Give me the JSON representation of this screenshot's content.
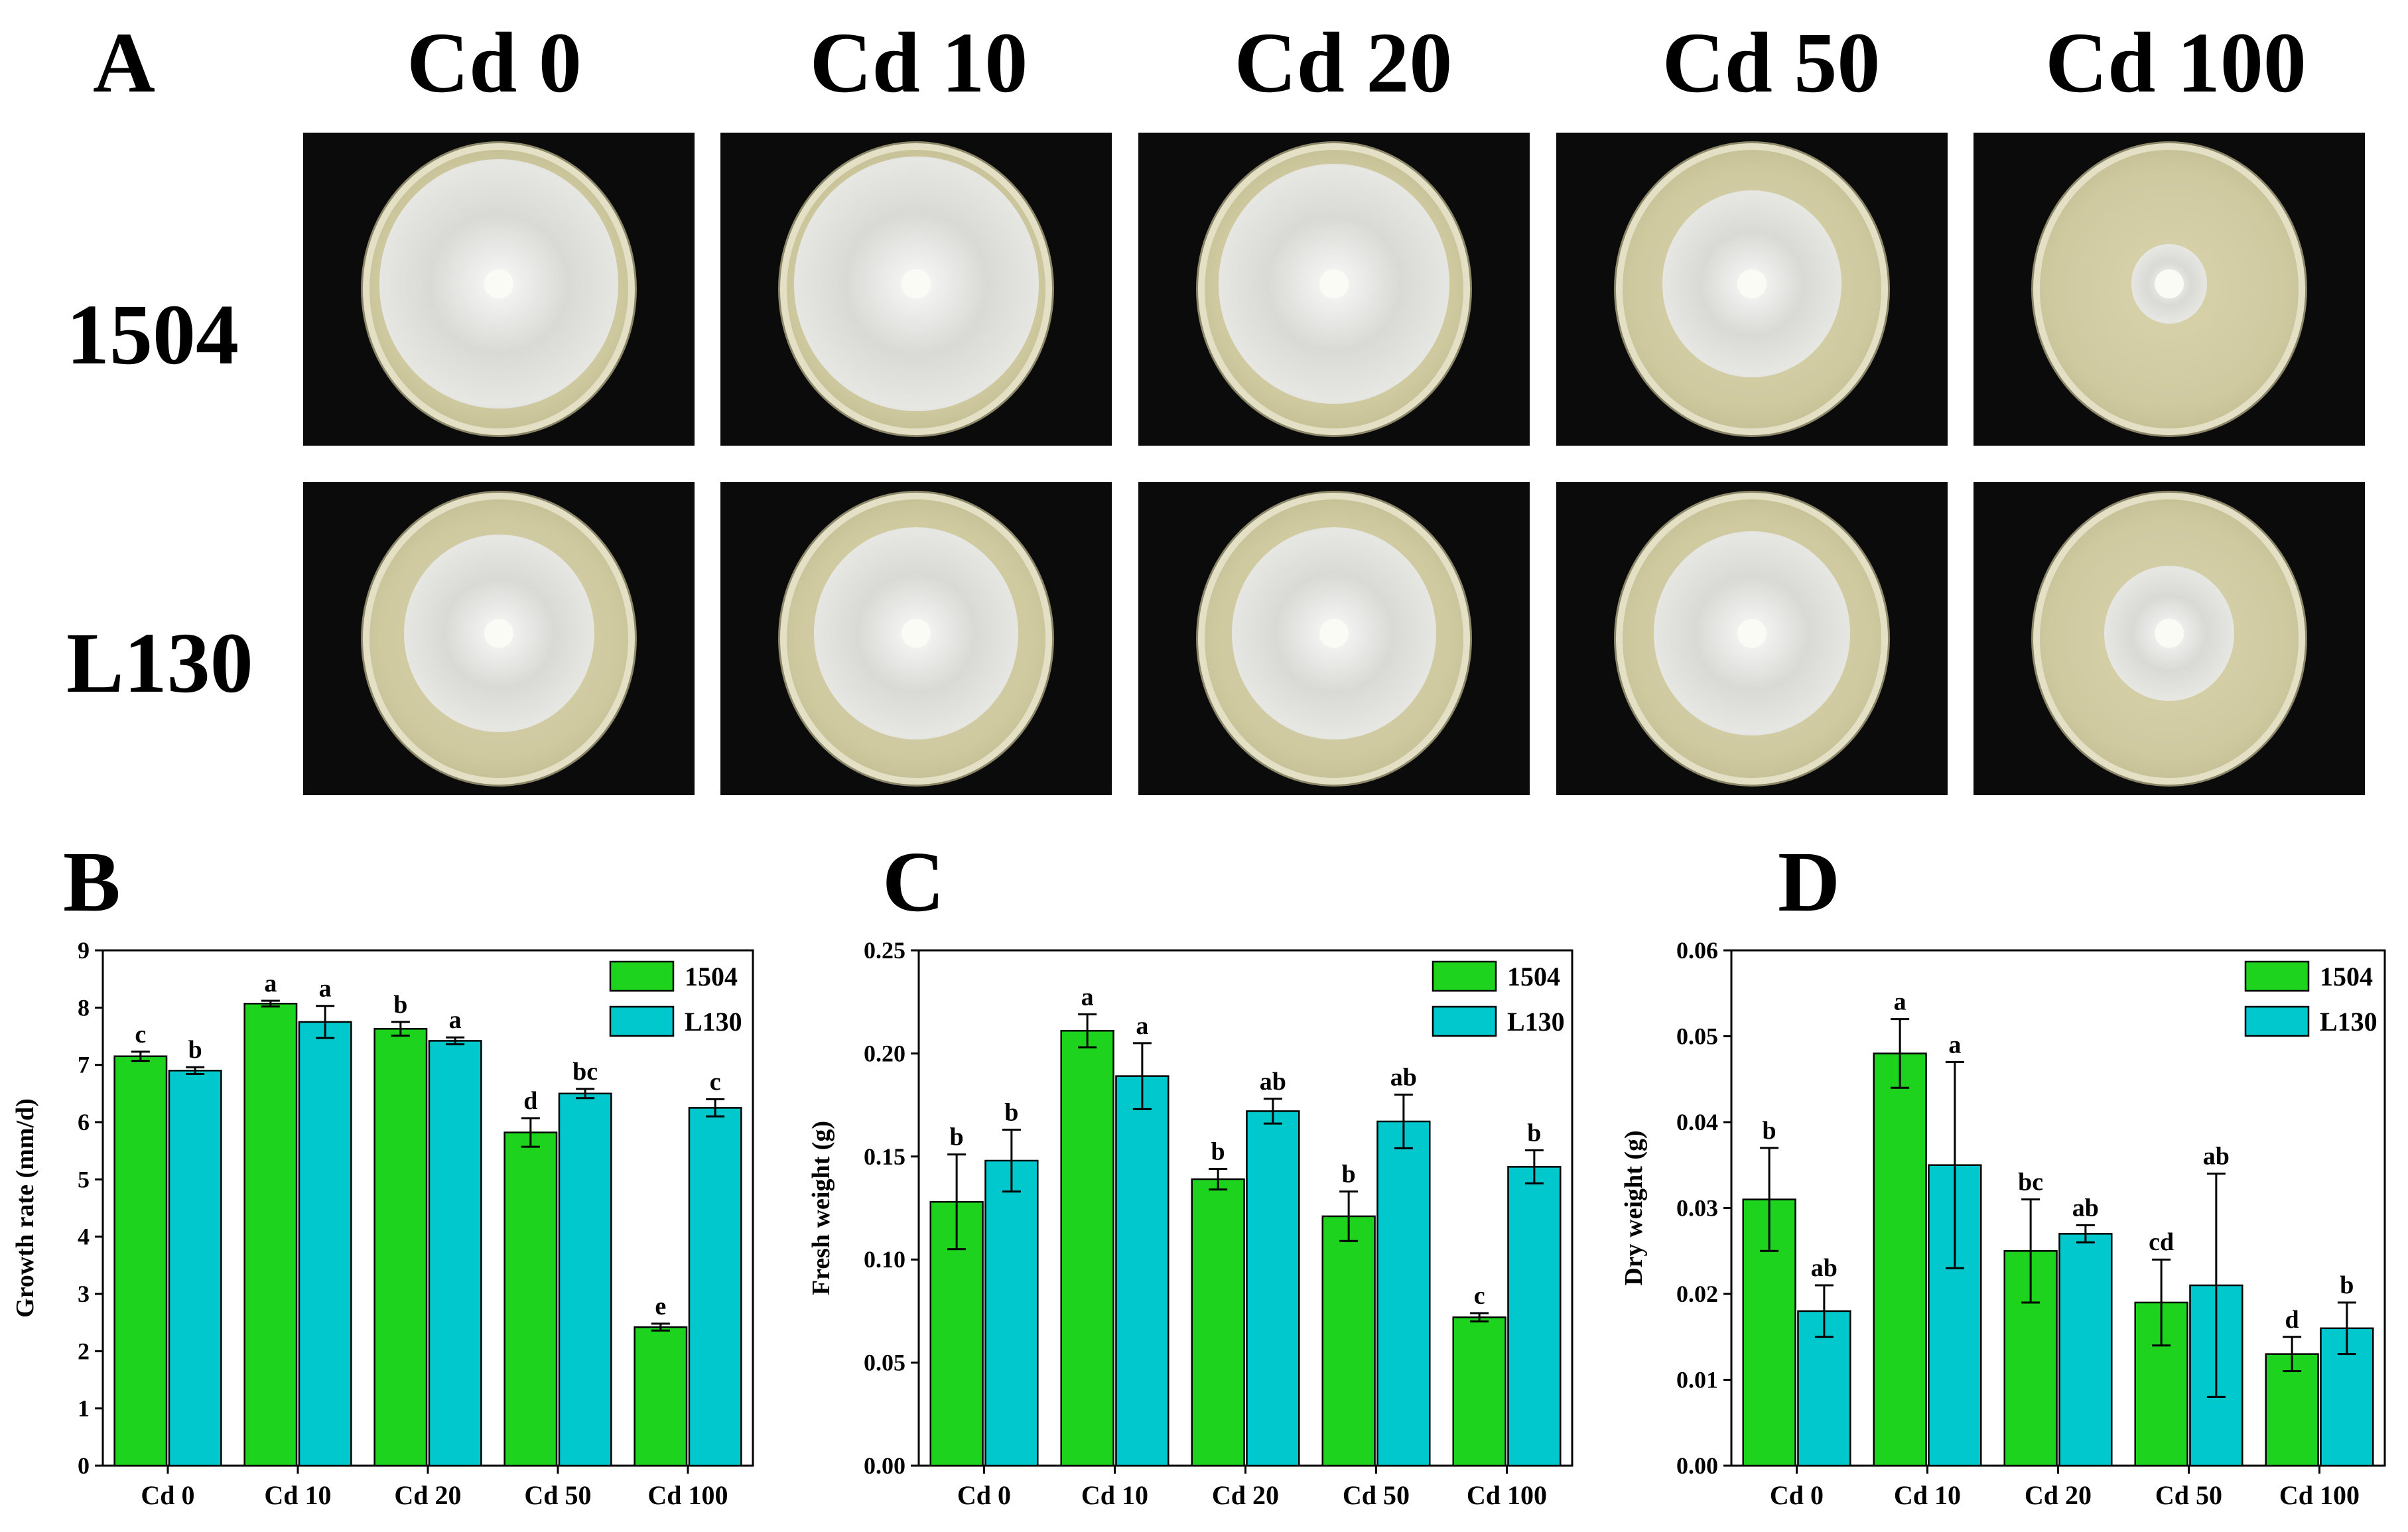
{
  "panel_letters": {
    "A": "A",
    "B": "B",
    "C": "C",
    "D": "D"
  },
  "photo_grid": {
    "columns": [
      "Cd 0",
      "Cd 10",
      "Cd 20",
      "Cd 50",
      "Cd 100"
    ],
    "rows": [
      "1504",
      "L130"
    ],
    "colony_relative_size": [
      [
        0.88,
        0.9,
        0.85,
        0.66,
        0.28
      ],
      [
        0.7,
        0.75,
        0.75,
        0.72,
        0.48
      ]
    ]
  },
  "colors": {
    "series_1504": "#1ed31e",
    "series_L130": "#00c8cc",
    "error_bar": "#000000"
  },
  "chart_data": [
    {
      "type": "bar",
      "panel": "B",
      "categories": [
        "Cd 0",
        "Cd 10",
        "Cd 20",
        "Cd 50",
        "Cd 100"
      ],
      "series": [
        {
          "name": "1504",
          "values": [
            7.15,
            8.07,
            7.63,
            5.82,
            2.42
          ],
          "errors": [
            0.08,
            0.05,
            0.12,
            0.25,
            0.06
          ],
          "letters": [
            "c",
            "a",
            "b",
            "d",
            "e"
          ]
        },
        {
          "name": "L130",
          "values": [
            6.9,
            7.75,
            7.42,
            6.5,
            6.25
          ],
          "errors": [
            0.06,
            0.28,
            0.06,
            0.08,
            0.15
          ],
          "letters": [
            "b",
            "a",
            "a",
            "bc",
            "c"
          ]
        }
      ],
      "ylabel": "Growth rate (mm/d)",
      "ylim": [
        0,
        9
      ],
      "yticks": [
        "0",
        "1",
        "2",
        "3",
        "4",
        "5",
        "6",
        "7",
        "8",
        "9"
      ],
      "legend": [
        "1504",
        "L130"
      ]
    },
    {
      "type": "bar",
      "panel": "C",
      "categories": [
        "Cd 0",
        "Cd 10",
        "Cd 20",
        "Cd 50",
        "Cd 100"
      ],
      "series": [
        {
          "name": "1504",
          "values": [
            0.128,
            0.211,
            0.139,
            0.121,
            0.072
          ],
          "errors": [
            0.023,
            0.008,
            0.005,
            0.012,
            0.002
          ],
          "letters": [
            "b",
            "a",
            "b",
            "b",
            "c"
          ]
        },
        {
          "name": "L130",
          "values": [
            0.148,
            0.189,
            0.172,
            0.167,
            0.145
          ],
          "errors": [
            0.015,
            0.016,
            0.006,
            0.013,
            0.008
          ],
          "letters": [
            "b",
            "a",
            "ab",
            "ab",
            "b"
          ]
        }
      ],
      "ylabel": "Fresh weight (g)",
      "ylim": [
        0,
        0.25
      ],
      "yticks": [
        "0.00",
        "0.05",
        "0.10",
        "0.15",
        "0.20",
        "0.25"
      ],
      "legend": [
        "1504",
        "L130"
      ]
    },
    {
      "type": "bar",
      "panel": "D",
      "categories": [
        "Cd 0",
        "Cd 10",
        "Cd 20",
        "Cd 50",
        "Cd 100"
      ],
      "series": [
        {
          "name": "1504",
          "values": [
            0.031,
            0.048,
            0.025,
            0.019,
            0.013
          ],
          "errors": [
            0.006,
            0.004,
            0.006,
            0.005,
            0.002
          ],
          "letters": [
            "b",
            "a",
            "bc",
            "cd",
            "d"
          ]
        },
        {
          "name": "L130",
          "values": [
            0.018,
            0.035,
            0.027,
            0.021,
            0.016
          ],
          "errors": [
            0.003,
            0.012,
            0.001,
            0.013,
            0.003
          ],
          "letters": [
            "ab",
            "a",
            "ab",
            "ab",
            "b"
          ]
        }
      ],
      "ylabel": "Dry weight (g)",
      "ylim": [
        0,
        0.06
      ],
      "yticks": [
        "0.00",
        "0.01",
        "0.02",
        "0.03",
        "0.04",
        "0.05",
        "0.06"
      ],
      "legend": [
        "1504",
        "L130"
      ]
    }
  ]
}
